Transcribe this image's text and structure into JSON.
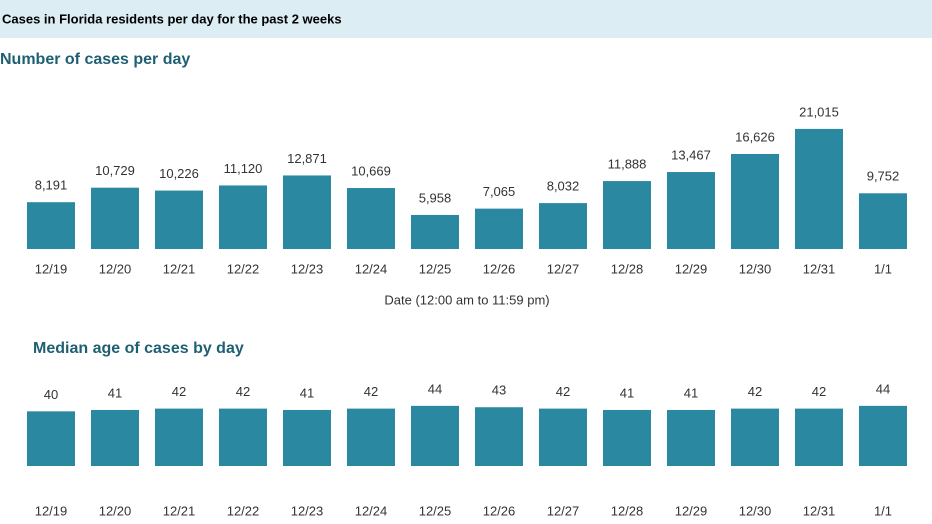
{
  "header": {
    "title": "Cases in Florida residents per day for the past 2 weeks"
  },
  "chart_data": [
    {
      "type": "bar",
      "title": "Number of cases per day",
      "x_label": "Date (12:00 am to 11:59 pm)",
      "categories": [
        "12/19",
        "12/20",
        "12/21",
        "12/22",
        "12/23",
        "12/24",
        "12/25",
        "12/26",
        "12/27",
        "12/28",
        "12/29",
        "12/30",
        "12/31",
        "1/1"
      ],
      "values": [
        8191,
        10729,
        10226,
        11120,
        12871,
        10669,
        5958,
        7065,
        8032,
        11888,
        13467,
        16626,
        21015,
        9752
      ],
      "value_labels": [
        "8,191",
        "10,729",
        "10,226",
        "11,120",
        "12,871",
        "10,669",
        "5,958",
        "7,065",
        "8,032",
        "11,888",
        "13,467",
        "16,626",
        "21,015",
        "9,752"
      ],
      "color": "#2b88a1",
      "ylim": [
        0,
        28000
      ]
    },
    {
      "type": "bar",
      "title": "Median age of cases by day",
      "categories": [
        "12/19",
        "12/20",
        "12/21",
        "12/22",
        "12/23",
        "12/24",
        "12/25",
        "12/26",
        "12/27",
        "12/28",
        "12/29",
        "12/30",
        "12/31",
        "1/1"
      ],
      "values": [
        40,
        41,
        42,
        42,
        41,
        42,
        44,
        43,
        42,
        41,
        41,
        42,
        42,
        44
      ],
      "color": "#2b88a1",
      "ylim": [
        0,
        60
      ]
    }
  ]
}
